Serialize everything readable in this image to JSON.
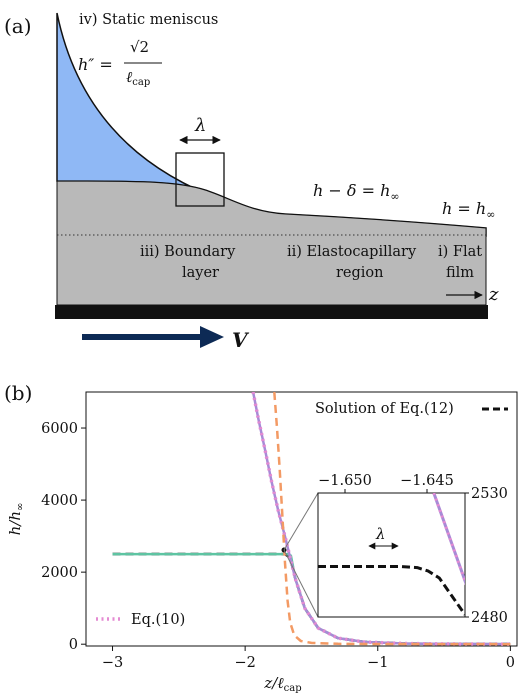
{
  "panel_a": {
    "label": "(a)",
    "regions": {
      "static_meniscus": "iv) Static meniscus",
      "boundary_layer": [
        "iii) Boundary",
        "layer"
      ],
      "elastocapillary": [
        "ii) Elastocapillary",
        "region"
      ],
      "flat_film": [
        "i) Flat",
        "film"
      ]
    },
    "equations": {
      "curvature_lhs": "h″ =",
      "curvature_num": "√2",
      "curvature_den": "ℓ",
      "curvature_den_sub": "cap",
      "h_minus_delta": "h − δ = h",
      "h_eq": "h = h",
      "inf_sub": "∞"
    },
    "lambda": "λ",
    "z_axis": "z",
    "velocity": "V",
    "colors": {
      "liquid": "#8fb8f5",
      "solid": "#b9b9b9",
      "substrate": "#111111",
      "arrow": "#0d2a55"
    }
  },
  "panel_b": {
    "label": "(b)",
    "inset_lambda": "λ",
    "legend_solution": "Solution of Eq.(12)",
    "legend_eq10": "Eq.(10)",
    "xlabel": {
      "main": "z/ℓ",
      "sub": "cap"
    },
    "ylabel": {
      "main": "h/h",
      "sub": "∞"
    },
    "inset_ticks": {
      "x": [
        "−1.650",
        "−1.645"
      ],
      "y": [
        "2530",
        "2480"
      ]
    }
  },
  "chart_data": {
    "type": "line",
    "xlim": [
      -3.2,
      0.05
    ],
    "ylim": [
      -50,
      7000
    ],
    "xticks": [
      -3,
      -2,
      -1,
      0
    ],
    "xtick_labels": [
      "−3",
      "−2",
      "−1",
      "0"
    ],
    "yticks": [
      0,
      2000,
      4000,
      6000
    ],
    "ytick_labels": [
      "0",
      "2000",
      "4000",
      "6000"
    ],
    "legend_placement": "top-right and bottom-left",
    "series": [
      {
        "name": "Solution of Eq.(12)",
        "color": "#111111",
        "style": "dashed",
        "x": [
          -3.0,
          -1.7,
          -1.66,
          -1.62,
          -1.55,
          -1.45,
          -1.3,
          -1.1,
          -0.8,
          -0.5,
          0.0
        ],
        "y": [
          2500,
          2500,
          2400,
          1800,
          1000,
          450,
          170,
          60,
          20,
          8,
          3
        ]
      },
      {
        "color": "#5ec4a2",
        "style": "solid",
        "x": [
          -3.0,
          -1.68,
          -1.655,
          -1.62,
          -1.55,
          -1.45,
          -1.3,
          -1.1,
          -0.8,
          -0.5,
          0.0
        ],
        "y": [
          2500,
          2500,
          2460,
          1800,
          1000,
          450,
          170,
          60,
          20,
          8,
          3
        ]
      },
      {
        "color": "#a98ad6",
        "style": "solid",
        "x": [
          -1.94,
          -1.9,
          -1.85,
          -1.8,
          -1.75,
          -1.7,
          -1.66,
          -1.62,
          -1.55,
          -1.45,
          -1.3,
          -1.1,
          -0.8,
          -0.5,
          0.0
        ],
        "y": [
          7000,
          6250,
          5400,
          4500,
          3700,
          3000,
          2400,
          1800,
          1000,
          450,
          170,
          60,
          20,
          8,
          3
        ]
      },
      {
        "name": "Eq.(10)",
        "color": "#e48ad2",
        "style": "dotted",
        "x": [
          -1.94,
          -1.9,
          -1.85,
          -1.8,
          -1.75,
          -1.7,
          -1.66,
          -1.62,
          -1.55,
          -1.45,
          -1.3,
          -1.1,
          -0.8,
          -0.5,
          0.0
        ],
        "y": [
          7000,
          6250,
          5400,
          4500,
          3700,
          3000,
          2400,
          1800,
          1000,
          450,
          170,
          60,
          20,
          8,
          3
        ]
      },
      {
        "color": "#f39a64",
        "style": "dashed",
        "x": [
          -1.78,
          -1.76,
          -1.74,
          -1.72,
          -1.7,
          -1.68,
          -1.66,
          -1.63,
          -1.58,
          -1.5,
          -1.3,
          -1.0,
          -0.5,
          0.0
        ],
        "y": [
          7000,
          6000,
          4900,
          3600,
          2300,
          1200,
          600,
          250,
          90,
          35,
          12,
          5,
          2,
          1
        ]
      }
    ],
    "inset": {
      "xlim": [
        -1.652,
        -1.644
      ],
      "ylim": [
        2478,
        2532
      ],
      "series": [
        {
          "color": "#a98ad6",
          "style": "solid",
          "x": [
            -1.6457,
            -1.6433
          ],
          "y": [
            2532,
            2478
          ]
        },
        {
          "color": "#e48ad2",
          "style": "dotted",
          "x": [
            -1.6457,
            -1.6433
          ],
          "y": [
            2532,
            2478
          ]
        },
        {
          "color": "#111111",
          "style": "dashed",
          "x": [
            -1.652,
            -1.6488,
            -1.6475,
            -1.6466,
            -1.646,
            -1.6454,
            -1.644
          ],
          "y": [
            2500,
            2500,
            2500,
            2499.5,
            2498,
            2495,
            2479
          ]
        }
      ]
    }
  }
}
